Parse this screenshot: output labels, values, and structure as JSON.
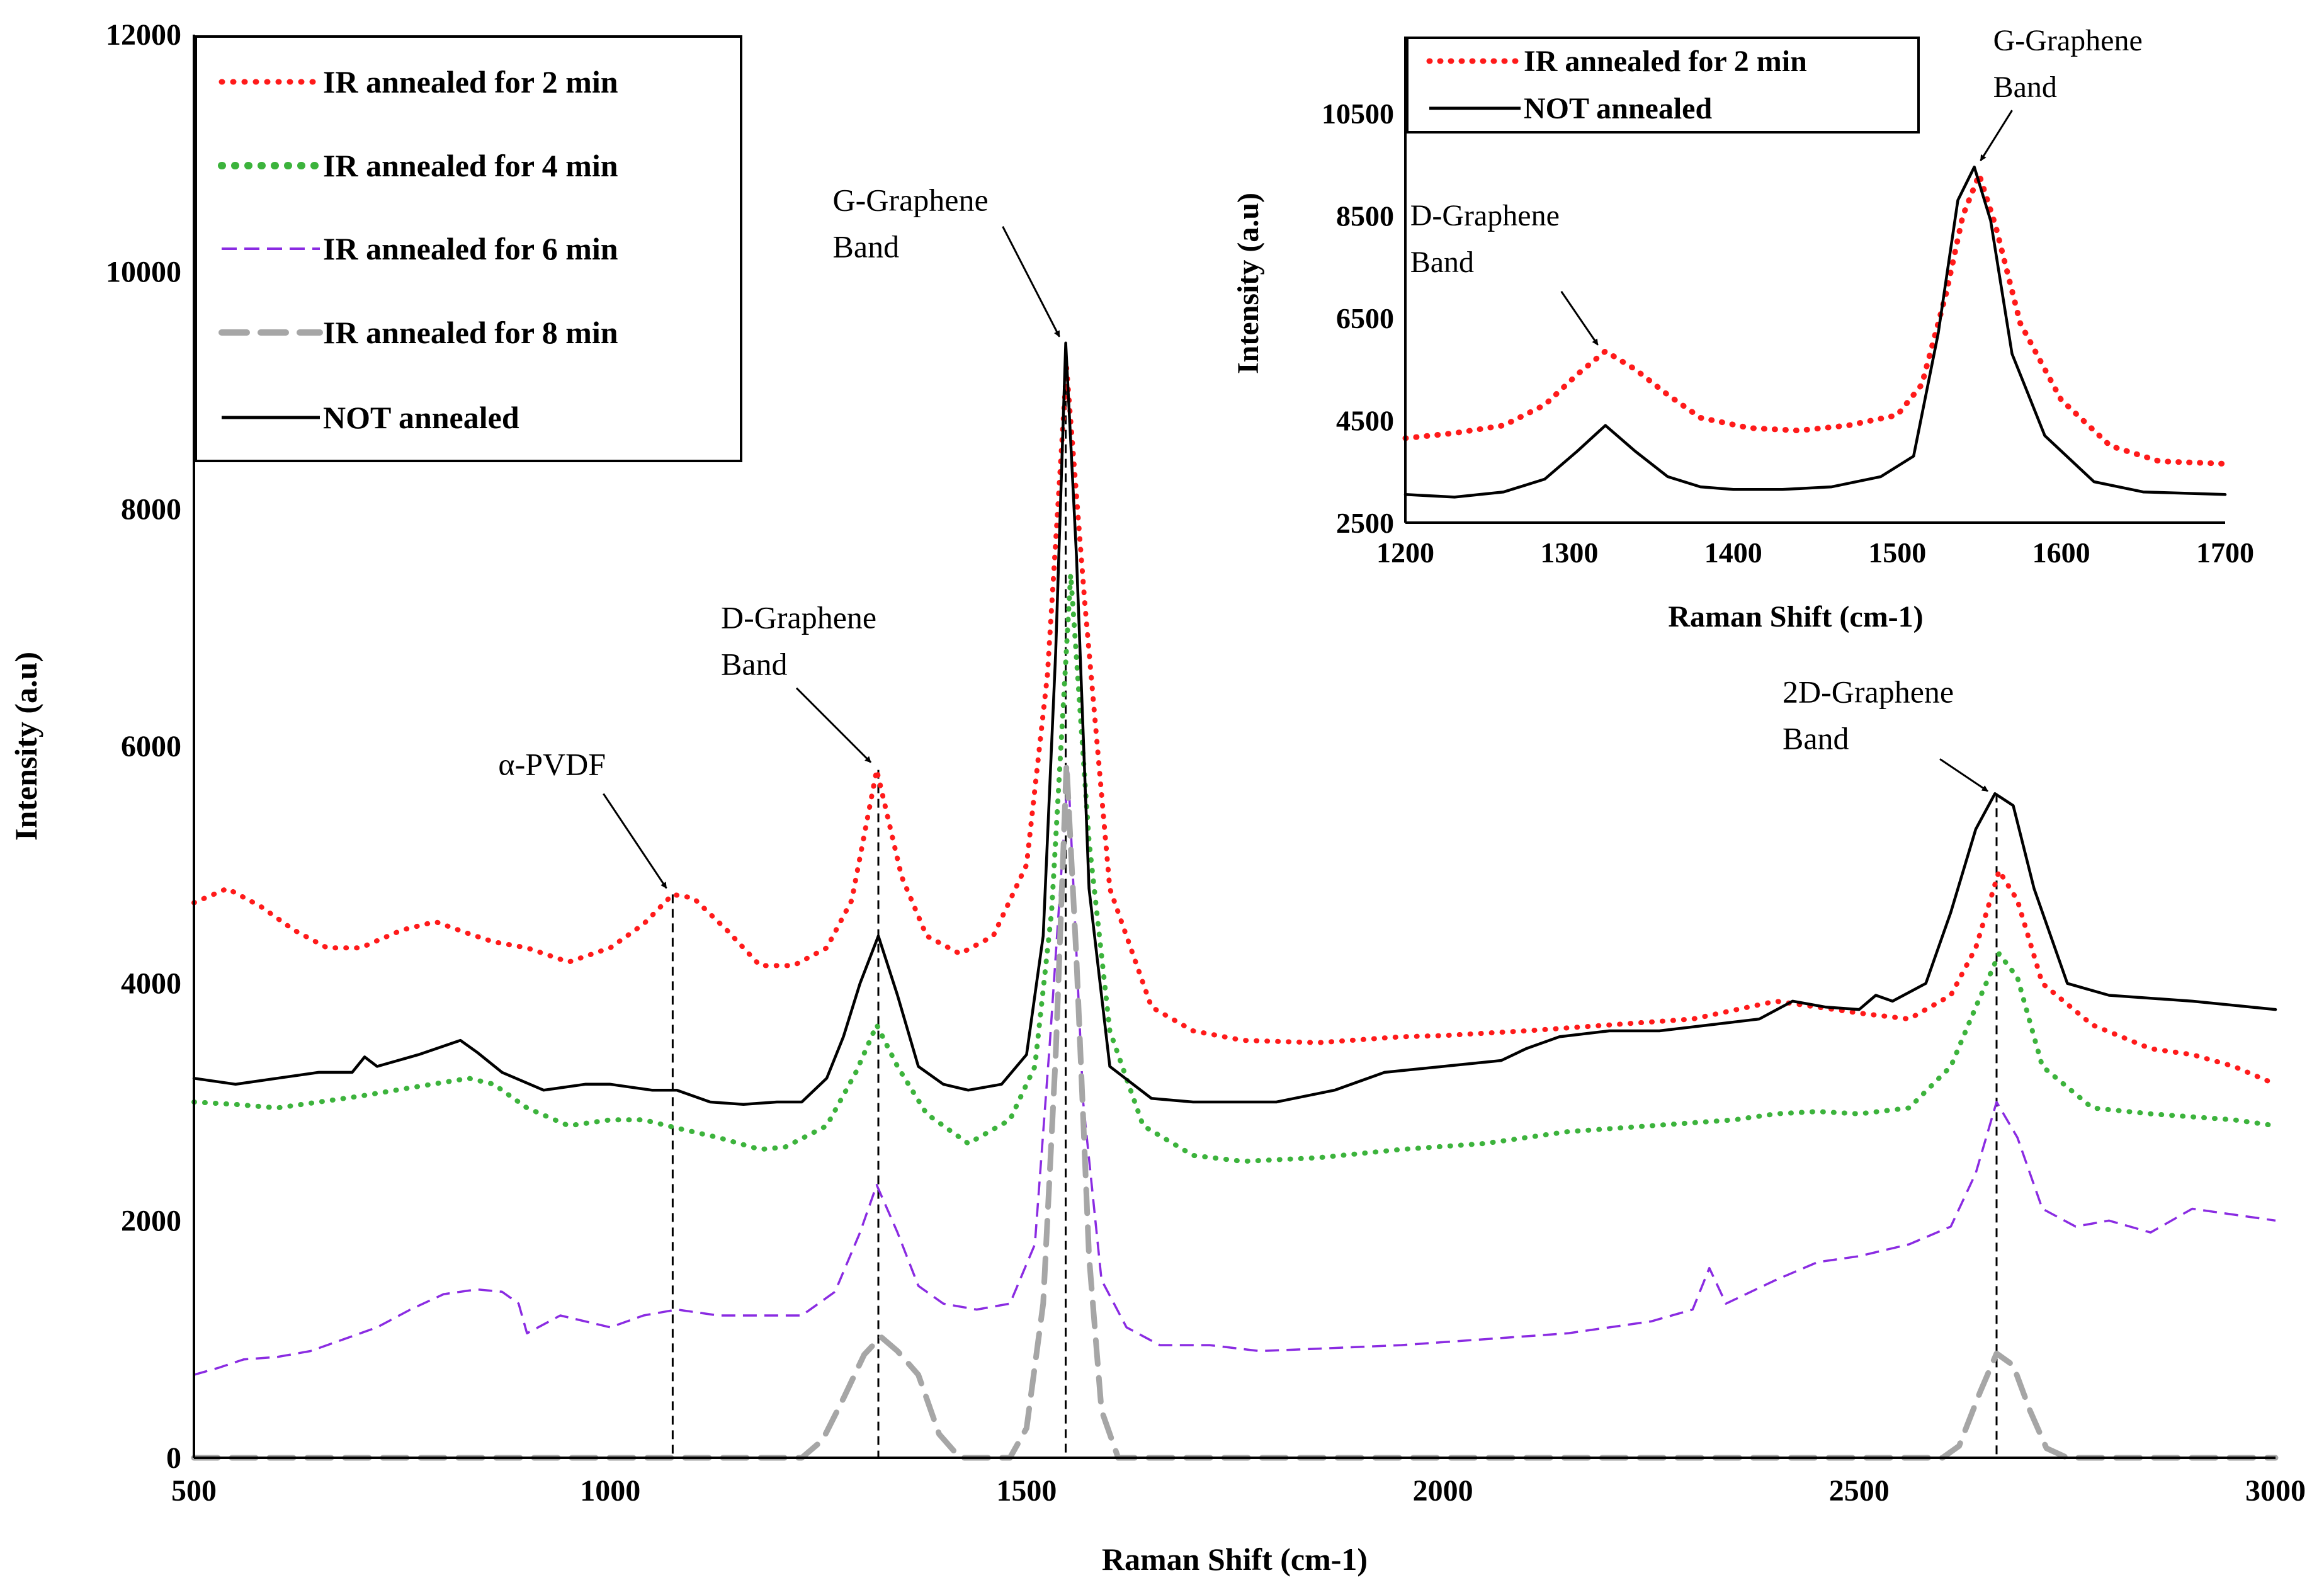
{
  "chart_data": [
    {
      "type": "line",
      "id": "main",
      "xlabel": "Raman Shift (cm-1)",
      "ylabel": "Intensity (a.u)",
      "xlim": [
        500,
        3000
      ],
      "ylim": [
        0,
        12000
      ],
      "xticks": [
        500,
        1000,
        1500,
        2000,
        2500,
        3000
      ],
      "yticks": [
        0,
        2000,
        4000,
        6000,
        8000,
        10000,
        12000
      ],
      "legend_position": "top-left",
      "series": [
        {
          "name": "IR annealed for 2 min",
          "color": "#ff1a1a",
          "style": "dotted",
          "x": [
            500,
            540,
            580,
            620,
            660,
            700,
            750,
            790,
            830,
            860,
            900,
            950,
            1000,
            1040,
            1075,
            1100,
            1140,
            1180,
            1220,
            1260,
            1290,
            1320,
            1350,
            1380,
            1420,
            1460,
            1500,
            1525,
            1548,
            1570,
            1600,
            1650,
            1700,
            1760,
            1850,
            1950,
            2000,
            2100,
            2200,
            2300,
            2400,
            2450,
            2500,
            2560,
            2610,
            2640,
            2668,
            2690,
            2720,
            2780,
            2850,
            2900,
            2950,
            3000
          ],
          "y": [
            4680,
            4800,
            4650,
            4450,
            4300,
            4300,
            4450,
            4520,
            4420,
            4350,
            4300,
            4180,
            4300,
            4500,
            4750,
            4720,
            4450,
            4150,
            4150,
            4300,
            4700,
            5800,
            4900,
            4400,
            4250,
            4400,
            5000,
            6600,
            9200,
            7200,
            4800,
            3800,
            3600,
            3520,
            3500,
            3550,
            3560,
            3600,
            3650,
            3700,
            3850,
            3800,
            3750,
            3700,
            3900,
            4300,
            4950,
            4700,
            4000,
            3650,
            3450,
            3400,
            3300,
            3150
          ]
        },
        {
          "name": "IR annealed for 4 min",
          "color": "#3cb33c",
          "style": "dotted",
          "x": [
            500,
            550,
            600,
            650,
            700,
            760,
            830,
            860,
            900,
            950,
            1000,
            1040,
            1080,
            1130,
            1180,
            1210,
            1260,
            1295,
            1320,
            1345,
            1380,
            1430,
            1480,
            1510,
            1530,
            1553,
            1575,
            1600,
            1640,
            1700,
            1760,
            1850,
            1950,
            2050,
            2150,
            2250,
            2350,
            2400,
            2450,
            2500,
            2560,
            2610,
            2640,
            2668,
            2690,
            2720,
            2780,
            2850,
            2950,
            3000
          ],
          "y": [
            3000,
            2980,
            2950,
            3000,
            3050,
            3120,
            3200,
            3150,
            2950,
            2800,
            2850,
            2850,
            2780,
            2700,
            2600,
            2620,
            2800,
            3250,
            3650,
            3300,
            2900,
            2650,
            2850,
            3300,
            4600,
            7450,
            5200,
            3600,
            2800,
            2550,
            2500,
            2530,
            2600,
            2650,
            2750,
            2800,
            2850,
            2900,
            2920,
            2900,
            2950,
            3300,
            3800,
            4250,
            4050,
            3300,
            2950,
            2900,
            2850,
            2800
          ]
        },
        {
          "name": "IR annealed for 6 min",
          "color": "#8a2be2",
          "style": "dashed",
          "x": [
            500,
            530,
            560,
            600,
            640,
            680,
            720,
            760,
            800,
            840,
            870,
            890,
            900,
            940,
            1000,
            1040,
            1080,
            1130,
            1180,
            1230,
            1270,
            1300,
            1320,
            1345,
            1370,
            1400,
            1440,
            1480,
            1510,
            1528,
            1550,
            1568,
            1590,
            1620,
            1660,
            1720,
            1780,
            1850,
            1950,
            2050,
            2150,
            2250,
            2300,
            2320,
            2340,
            2400,
            2450,
            2500,
            2560,
            2610,
            2640,
            2665,
            2690,
            2720,
            2760,
            2800,
            2850,
            2900,
            2950,
            3000
          ],
          "y": [
            700,
            760,
            830,
            850,
            900,
            1000,
            1100,
            1250,
            1380,
            1420,
            1400,
            1300,
            1050,
            1200,
            1100,
            1200,
            1250,
            1200,
            1200,
            1200,
            1400,
            1900,
            2300,
            1900,
            1450,
            1300,
            1250,
            1300,
            1800,
            3500,
            5800,
            3000,
            1500,
            1100,
            950,
            950,
            900,
            920,
            950,
            1000,
            1050,
            1150,
            1250,
            1600,
            1300,
            1500,
            1650,
            1700,
            1800,
            1950,
            2400,
            3000,
            2700,
            2100,
            1950,
            2000,
            1900,
            2100,
            2050,
            2000
          ]
        },
        {
          "name": "IR annealed for 8 min",
          "color": "#a6a6a6",
          "style": "longdash",
          "x": [
            500,
            1000,
            1230,
            1255,
            1280,
            1305,
            1325,
            1345,
            1370,
            1395,
            1420,
            1480,
            1500,
            1520,
            1535,
            1548,
            1560,
            1575,
            1590,
            1610,
            1640,
            2500,
            2600,
            2620,
            2645,
            2665,
            2685,
            2705,
            2725,
            2750,
            3000
          ],
          "y": [
            0,
            0,
            0,
            150,
            500,
            870,
            1020,
            900,
            700,
            200,
            0,
            0,
            250,
            1300,
            3400,
            5850,
            4200,
            1700,
            400,
            0,
            0,
            0,
            0,
            100,
            550,
            880,
            780,
            400,
            80,
            0,
            0
          ]
        },
        {
          "name": "NOT annealed",
          "color": "#000000",
          "style": "solid",
          "x": [
            500,
            550,
            600,
            650,
            690,
            705,
            720,
            770,
            820,
            840,
            870,
            920,
            970,
            1000,
            1050,
            1080,
            1120,
            1160,
            1200,
            1230,
            1260,
            1280,
            1300,
            1322,
            1345,
            1370,
            1400,
            1430,
            1470,
            1500,
            1520,
            1535,
            1547,
            1560,
            1575,
            1600,
            1650,
            1700,
            1760,
            1800,
            1870,
            1930,
            2000,
            2070,
            2100,
            2140,
            2200,
            2260,
            2320,
            2380,
            2420,
            2460,
            2500,
            2520,
            2540,
            2580,
            2610,
            2640,
            2663,
            2685,
            2710,
            2750,
            2800,
            2900,
            3000
          ],
          "y": [
            3200,
            3150,
            3200,
            3250,
            3250,
            3380,
            3300,
            3400,
            3520,
            3420,
            3250,
            3100,
            3150,
            3150,
            3100,
            3100,
            3000,
            2980,
            3000,
            3000,
            3200,
            3550,
            4000,
            4400,
            3900,
            3300,
            3150,
            3100,
            3150,
            3400,
            4400,
            6800,
            9400,
            7600,
            4800,
            3300,
            3030,
            3000,
            3000,
            3000,
            3100,
            3250,
            3300,
            3350,
            3450,
            3550,
            3600,
            3600,
            3650,
            3700,
            3850,
            3800,
            3780,
            3900,
            3850,
            4000,
            4600,
            5300,
            5600,
            5500,
            4800,
            4000,
            3900,
            3850,
            3780
          ]
        }
      ],
      "annotations": [
        {
          "text": [
            "G-Graphene",
            "Band"
          ],
          "x": 1547,
          "y": 9400
        },
        {
          "text": [
            "D-Graphene",
            "Band"
          ],
          "x": 1322,
          "y": 5800
        },
        {
          "text": [
            "α-PVDF"
          ],
          "x": 1075,
          "y": 4750
        },
        {
          "text": [
            "2D-Graphene",
            "Band"
          ],
          "x": 2665,
          "y": 5600
        }
      ]
    },
    {
      "type": "line",
      "id": "inset",
      "xlabel": "Raman Shift (cm-1)",
      "ylabel": "Intensity (a.u)",
      "xlim": [
        1200,
        1700
      ],
      "ylim": [
        2500,
        12000
      ],
      "xticks": [
        1200,
        1300,
        1400,
        1500,
        1600,
        1700
      ],
      "yticks": [
        2500,
        4500,
        6500,
        8500,
        10500
      ],
      "legend_position": "top-left",
      "series": [
        {
          "name": "IR annealed for 2 min",
          "color": "#ff1a1a",
          "style": "dotted",
          "x": [
            1200,
            1230,
            1260,
            1285,
            1305,
            1322,
            1340,
            1360,
            1380,
            1410,
            1440,
            1470,
            1500,
            1515,
            1530,
            1540,
            1550,
            1560,
            1575,
            1600,
            1630,
            1660,
            1700
          ],
          "y": [
            4150,
            4250,
            4400,
            4800,
            5400,
            5850,
            5500,
            5000,
            4550,
            4350,
            4300,
            4400,
            4600,
            5200,
            7000,
            8500,
            9300,
            8300,
            6400,
            4900,
            4000,
            3700,
            3650
          ]
        },
        {
          "name": "NOT annealed",
          "color": "#000000",
          "style": "solid",
          "x": [
            1200,
            1230,
            1260,
            1285,
            1305,
            1322,
            1340,
            1360,
            1380,
            1400,
            1430,
            1460,
            1490,
            1510,
            1525,
            1537,
            1547,
            1557,
            1570,
            1590,
            1620,
            1650,
            1700
          ],
          "y": [
            3050,
            3000,
            3100,
            3350,
            3900,
            4400,
            3900,
            3400,
            3200,
            3150,
            3150,
            3200,
            3400,
            3800,
            6200,
            8800,
            9450,
            8400,
            5800,
            4200,
            3300,
            3100,
            3050
          ]
        }
      ],
      "annotations": [
        {
          "text": [
            "G-Graphene",
            "Band"
          ],
          "x": 1547,
          "y": 9450
        },
        {
          "text": [
            "D-Graphene",
            "Band"
          ],
          "x": 1322,
          "y": 5850
        }
      ]
    }
  ]
}
